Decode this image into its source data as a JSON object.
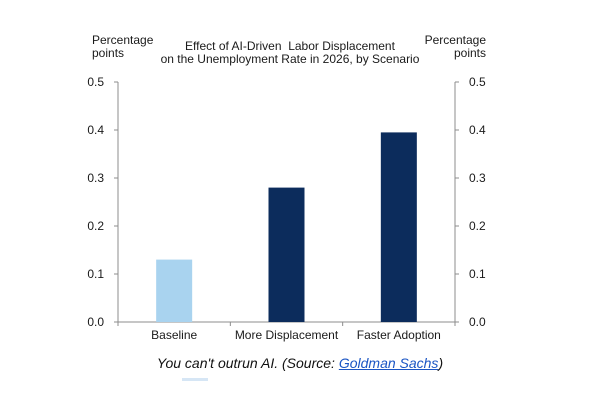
{
  "chart_data": {
    "type": "bar",
    "title": "Effect of AI-Driven Labor Displacement on the Unemployment Rate in 2026, by Scenario",
    "title_lines": [
      "Effect of AI-Driven  Labor Displacement",
      "on the Unemployment Rate in 2026, by Scenario"
    ],
    "ylabel_left_lines": [
      "Percentage",
      "points"
    ],
    "ylabel_right_lines": [
      "Percentage",
      "points"
    ],
    "categories": [
      "Baseline",
      "More Displacement",
      "Faster Adoption"
    ],
    "values": [
      0.13,
      0.28,
      0.395
    ],
    "bar_colors": [
      "#a9d3ef",
      "#0c2c5c",
      "#0c2c5c"
    ],
    "ylim": [
      0,
      0.5
    ],
    "yticks": [
      "0.0",
      "0.1",
      "0.2",
      "0.3",
      "0.4",
      "0.5"
    ],
    "grid": false,
    "legend": "none"
  },
  "caption": {
    "prefix": "You can't outrun AI. (Source: ",
    "link_text": "Goldman Sachs",
    "suffix": ")"
  }
}
